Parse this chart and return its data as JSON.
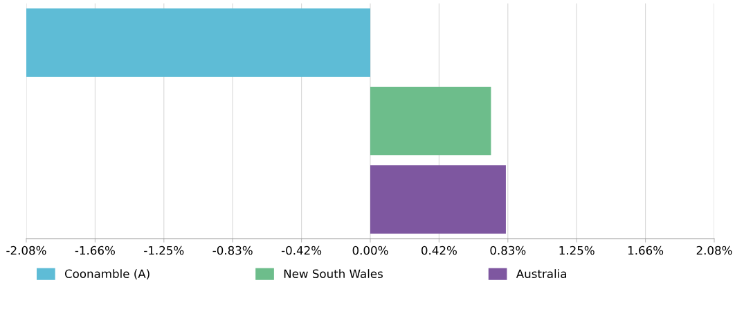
{
  "chart_data": {
    "type": "bar",
    "orientation": "horizontal",
    "categories": [
      null,
      null,
      null
    ],
    "series": [
      {
        "name": "Coonamble (A)",
        "color": "#5ebcd6",
        "values": [
          -2.08,
          null,
          null
        ]
      },
      {
        "name": "New South Wales",
        "color": "#6dbd8b",
        "values": [
          null,
          0.73,
          null
        ]
      },
      {
        "name": "Australia",
        "color": "#7e57a0",
        "values": [
          null,
          null,
          0.82
        ]
      }
    ],
    "xlim": [
      -2.08,
      2.08
    ],
    "xticks": [
      {
        "value": -2.08,
        "label": "-2.08%"
      },
      {
        "value": -1.664,
        "label": "-1.66%"
      },
      {
        "value": -1.248,
        "label": "-1.25%"
      },
      {
        "value": -0.832,
        "label": "-0.83%"
      },
      {
        "value": -0.416,
        "label": "-0.42%"
      },
      {
        "value": 0,
        "label": "0.00%"
      },
      {
        "value": 0.416,
        "label": "0.42%"
      },
      {
        "value": 0.832,
        "label": "0.83%"
      },
      {
        "value": 1.248,
        "label": "1.25%"
      },
      {
        "value": 1.664,
        "label": "1.66%"
      },
      {
        "value": 2.08,
        "label": "2.08%"
      }
    ],
    "grid": "x",
    "legend": "bottom",
    "tick_labels": "x"
  }
}
